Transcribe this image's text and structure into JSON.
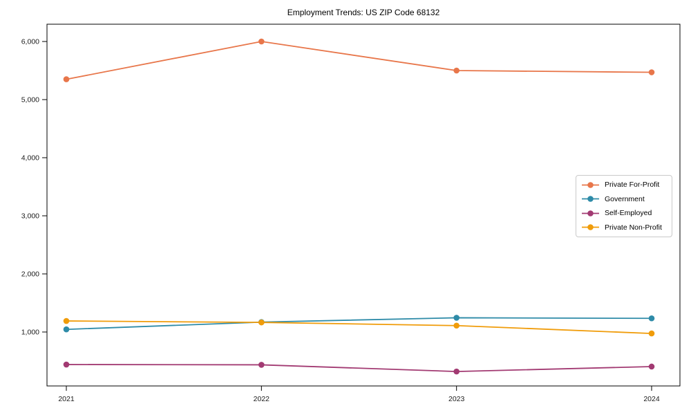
{
  "title": "Employment Trends: US ZIP Code 68132",
  "chart_data": {
    "type": "line",
    "x": [
      2021,
      2022,
      2023,
      2024
    ],
    "xtick_labels": [
      "2021",
      "2022",
      "2023",
      "2024"
    ],
    "ytick_values": [
      1000,
      2000,
      3000,
      4000,
      5000,
      6000
    ],
    "ytick_labels": [
      "1,000",
      "2,000",
      "3,000",
      "4,000",
      "5,000",
      "6,000"
    ],
    "xlim": [
      2020.9,
      2024.15
    ],
    "ylim": [
      -15,
      6320
    ],
    "grid": false,
    "legend_position": "center-right",
    "marker": "circle",
    "series": [
      {
        "name": "Private For-Profit",
        "color": "#e8764a",
        "values": [
          5350,
          6000,
          5500,
          5470
        ]
      },
      {
        "name": "Government",
        "color": "#2e8ba8",
        "values": [
          1045,
          1170,
          1245,
          1235
        ]
      },
      {
        "name": "Self-Employed",
        "color": "#a23a72",
        "values": [
          440,
          435,
          320,
          405
        ]
      },
      {
        "name": "Private Non-Profit",
        "color": "#f09c0a",
        "values": [
          1190,
          1165,
          1110,
          975
        ]
      }
    ]
  },
  "axes": {
    "spine_color": "#000000",
    "tick_color": "#000000",
    "tick_label_color": "#1a1a1a"
  }
}
